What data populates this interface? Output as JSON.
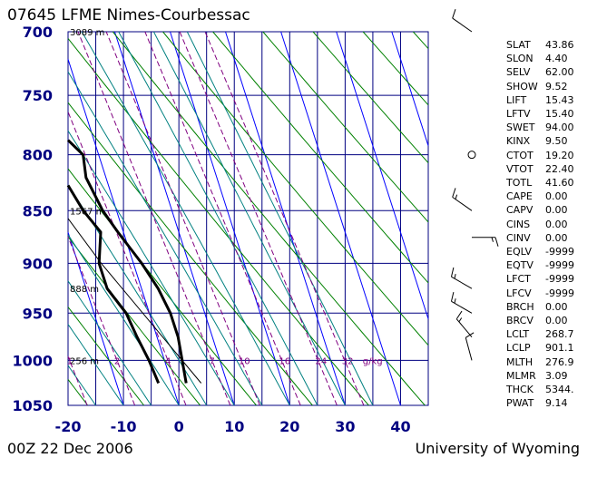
{
  "header": {
    "title": "07645 LFME Nimes-Courbessac"
  },
  "footer": {
    "time": "00Z 22 Dec 2006",
    "source": "University of Wyoming"
  },
  "chart_data": {
    "type": "line",
    "title": "07645 LFME Nimes-Courbessac",
    "xlim": [
      -20,
      45
    ],
    "ylim": [
      1050,
      700
    ],
    "x_ticks": [
      "-20",
      "-10",
      "0",
      "10",
      "20",
      "30",
      "40"
    ],
    "y_ticks": [
      "700",
      "750",
      "800",
      "850",
      "900",
      "950",
      "1000",
      "1050"
    ],
    "height_labels": [
      {
        "p": 700,
        "label": "3089 m"
      },
      {
        "p": 850,
        "label": "1567 m"
      },
      {
        "p": 925,
        "label": "888 m"
      },
      {
        "p": 1000,
        "label": "256 m"
      }
    ],
    "mixing_ratio_labels": [
      "1",
      "2",
      "4",
      "7",
      "10",
      "16",
      "24",
      "32",
      "g/kg"
    ],
    "series": [
      {
        "name": "Temperature",
        "points": [
          {
            "p": 1025,
            "t": 2.6
          },
          {
            "p": 1000,
            "t": 3.2
          },
          {
            "p": 975,
            "t": 3.8
          },
          {
            "p": 950,
            "t": 3.8
          },
          {
            "p": 925,
            "t": 3.0
          },
          {
            "p": 900,
            "t": 1.5
          },
          {
            "p": 870,
            "t": -1.0
          },
          {
            "p": 850,
            "t": -2.5
          },
          {
            "p": 820,
            "t": -3.6
          },
          {
            "p": 800,
            "t": -2.8
          },
          {
            "p": 780,
            "t": -5.8
          },
          {
            "p": 750,
            "t": -8.8
          },
          {
            "p": 700,
            "t": -11.6
          }
        ]
      },
      {
        "name": "Dewpoint",
        "points": [
          {
            "p": 1025,
            "t": -2.4
          },
          {
            "p": 1000,
            "t": -2.8
          },
          {
            "p": 975,
            "t": -3.6
          },
          {
            "p": 950,
            "t": -4.2
          },
          {
            "p": 925,
            "t": -6.2
          },
          {
            "p": 900,
            "t": -6.2
          },
          {
            "p": 870,
            "t": -4.1
          },
          {
            "p": 850,
            "t": -6.0
          },
          {
            "p": 825,
            "t": -7.4
          },
          {
            "p": 820,
            "t": -13.8
          },
          {
            "p": 800,
            "t": -12.8
          },
          {
            "p": 760,
            "t": -14.6
          },
          {
            "p": 700,
            "t": -19.0
          }
        ]
      }
    ],
    "parcel_path": [
      {
        "p": 1025,
        "t": 5.3
      },
      {
        "p": 900,
        "t": -5.8
      },
      {
        "p": 850,
        "t": -9.8
      },
      {
        "p": 750,
        "t": -17.3
      },
      {
        "p": 700,
        "t": -20.8
      }
    ],
    "wind_barbs": [
      {
        "p": 700,
        "dir": 305,
        "kt": 10
      },
      {
        "p": 800,
        "calm": true
      },
      {
        "p": 850,
        "dir": 305,
        "kt": 15
      },
      {
        "p": 875,
        "dir": 90,
        "kt": 15
      },
      {
        "p": 925,
        "dir": 300,
        "kt": 15
      },
      {
        "p": 950,
        "dir": 300,
        "kt": 15
      },
      {
        "p": 975,
        "dir": 320,
        "kt": 15
      },
      {
        "p": 1000,
        "dir": 345,
        "kt": 10
      }
    ],
    "indices": [
      {
        "key": "SLAT",
        "value": "43.86"
      },
      {
        "key": "SLON",
        "value": "4.40"
      },
      {
        "key": "SELV",
        "value": "62.00"
      },
      {
        "key": "SHOW",
        "value": "9.52"
      },
      {
        "key": "LIFT",
        "value": "15.43"
      },
      {
        "key": "LFTV",
        "value": "15.40"
      },
      {
        "key": "SWET",
        "value": "94.00"
      },
      {
        "key": "KINX",
        "value": "9.50"
      },
      {
        "key": "CTOT",
        "value": "19.20"
      },
      {
        "key": "VTOT",
        "value": "22.40"
      },
      {
        "key": "TOTL",
        "value": "41.60"
      },
      {
        "key": "CAPE",
        "value": "0.00"
      },
      {
        "key": "CAPV",
        "value": "0.00"
      },
      {
        "key": "CINS",
        "value": "0.00"
      },
      {
        "key": "CINV",
        "value": "0.00"
      },
      {
        "key": "EQLV",
        "value": "-9999"
      },
      {
        "key": "EQTV",
        "value": "-9999"
      },
      {
        "key": "LFCT",
        "value": "-9999"
      },
      {
        "key": "LFCV",
        "value": "-9999"
      },
      {
        "key": "BRCH",
        "value": "0.00"
      },
      {
        "key": "BRCV",
        "value": "0.00"
      },
      {
        "key": "LCLT",
        "value": "268.7"
      },
      {
        "key": "LCLP",
        "value": "901.1"
      },
      {
        "key": "MLTH",
        "value": "276.9"
      },
      {
        "key": "MLMR",
        "value": "3.09"
      },
      {
        "key": "THCK",
        "value": "5344."
      },
      {
        "key": "PWAT",
        "value": "9.14"
      }
    ],
    "colors": {
      "grid": "#000080",
      "isotherm": "#0000ff",
      "dry_adiabat": "#008000",
      "moist_adiabat": "#008080",
      "mixing_ratio": "#800080",
      "profile": "#000000"
    }
  }
}
